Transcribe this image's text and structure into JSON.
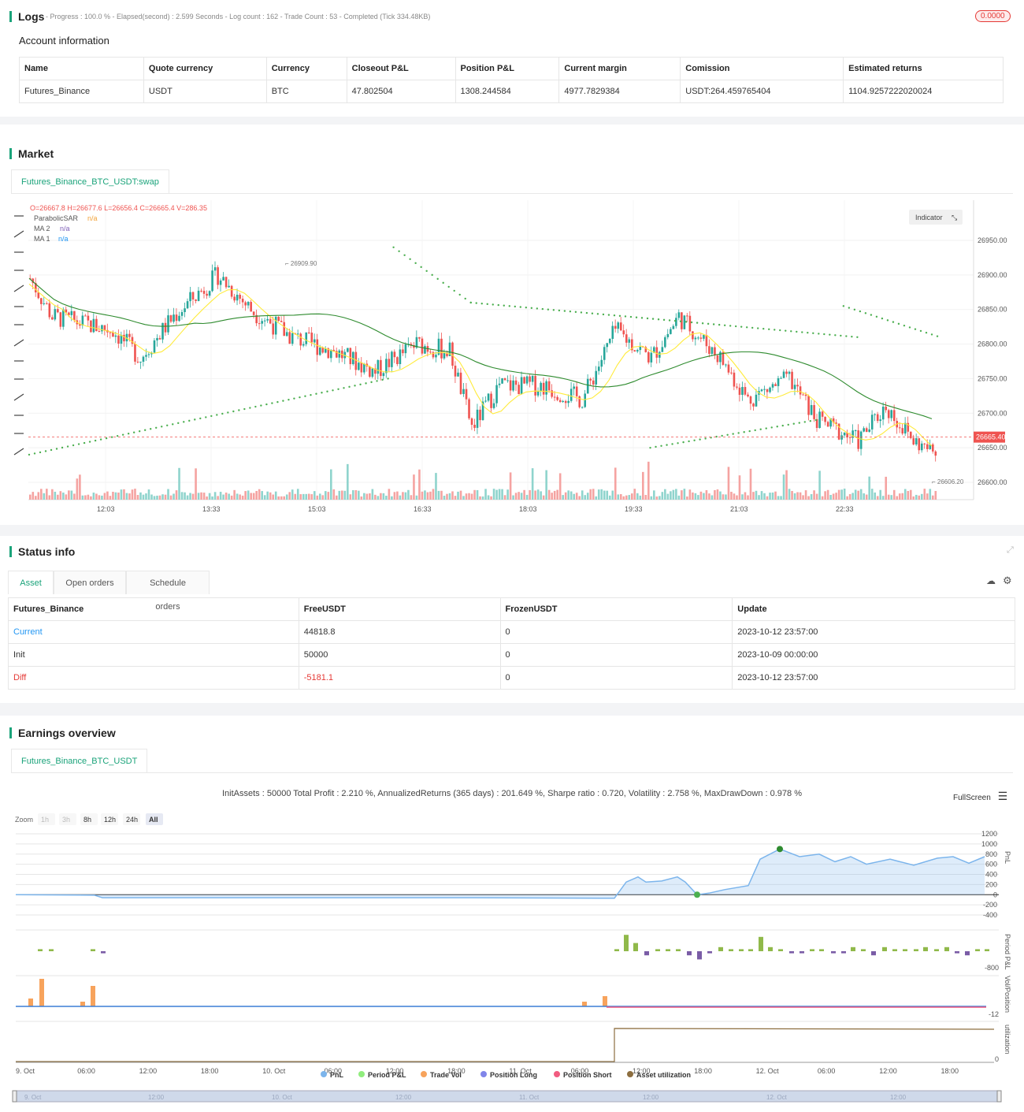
{
  "logs": {
    "title": "Logs",
    "summary": "- Progress : 100.0 % - Elapsed(second) : 2.599  Seconds - Log count : 162 - Trade Count : 53 - Completed (Tick 334.48KB)",
    "badge": "0.0000"
  },
  "account": {
    "title": "Account information",
    "headers": [
      "Name",
      "Quote currency",
      "Currency",
      "Closeout P&L",
      "Position P&L",
      "Current margin",
      "Comission",
      "Estimated returns"
    ],
    "row": [
      "Futures_Binance",
      "USDT",
      "BTC",
      "47.802504",
      "1308.244584",
      "4977.7829384",
      "USDT:264.459765404",
      "1104.9257222020024"
    ]
  },
  "market": {
    "title": "Market",
    "tab": "Futures_Binance_BTC_USDT:swap",
    "ohlc": "O=26667.8 H=26677.6 L=26656.4 C=26665.4 V=286.35",
    "legend": [
      {
        "name": "ParabolicSAR",
        "value": "n/a",
        "color": "#f2a33a"
      },
      {
        "name": "MA 2",
        "value": "n/a",
        "color": "#7f5fb8"
      },
      {
        "name": "MA 1",
        "value": "n/a",
        "color": "#2196f3"
      }
    ],
    "indicator_btn": "Indicator",
    "price_labels": [
      "26950.00",
      "26900.00",
      "26850.00",
      "26800.00",
      "26750.00",
      "26700.00",
      "26650.00",
      "26600.00"
    ],
    "current_price": "26665.40",
    "high_label": "26909.90",
    "low_label": "26606.20",
    "time_labels": [
      "12:03",
      "13:33",
      "15:03",
      "16:33",
      "18:03",
      "19:33",
      "21:03",
      "22:33"
    ],
    "colors": {
      "up": "#26a69a",
      "down": "#ef5350",
      "ma1": "#ffeb3b",
      "ma2": "#2e8b2e",
      "sar": "#4caf50"
    }
  },
  "status": {
    "title": "Status info",
    "tabs": [
      "Asset",
      "Open orders",
      "Schedule orders"
    ],
    "headers": [
      "Futures_Binance",
      "FreeUSDT",
      "FrozenUSDT",
      "Update"
    ],
    "rows": [
      [
        "Current",
        "44818.8",
        "0",
        "2023-10-12 23:57:00"
      ],
      [
        "Init",
        "50000",
        "0",
        "2023-10-09 00:00:00"
      ],
      [
        "Diff",
        "-5181.1",
        "0",
        "2023-10-12 23:57:00"
      ]
    ]
  },
  "earnings": {
    "title": "Earnings overview",
    "tab": "Futures_Binance_BTC_USDT",
    "summary": "InitAssets : 50000 Total Profit : 2.210 %, AnnualizedReturns (365 days) : 201.649 %, Sharpe ratio : 0.720, Volatility : 2.758 %, MaxDrawDown : 0.978 %",
    "fullscreen": "FullScreen",
    "zoom_label": "Zoom",
    "zoom_buttons": [
      "1h",
      "3h",
      "8h",
      "12h",
      "24h",
      "All"
    ],
    "pnl_axis": [
      "1200",
      "1000",
      "800",
      "600",
      "400",
      "200",
      "0",
      "-200",
      "-400"
    ],
    "axis_titles": [
      "PnL",
      "Period P&L",
      "Vol/Position",
      "utilization"
    ],
    "period_low": "-800",
    "vol_low": "-12",
    "util_low": "0",
    "x_labels": [
      "9. Oct",
      "06:00",
      "12:00",
      "18:00",
      "10. Oct",
      "06:00",
      "12:00",
      "18:00",
      "11. Oct",
      "06:00",
      "12:00",
      "18:00",
      "12. Oct",
      "06:00",
      "12:00",
      "18:00"
    ],
    "legend": [
      {
        "name": "PnL",
        "color": "#7cb5ec"
      },
      {
        "name": "Period P&L",
        "color": "#90ed7d"
      },
      {
        "name": "Trade Vol",
        "color": "#f7a35c"
      },
      {
        "name": "Position Long",
        "color": "#8085e9"
      },
      {
        "name": "Position Short",
        "color": "#f15c80"
      },
      {
        "name": "Asset utilization",
        "color": "#8d6e3f"
      }
    ],
    "navigator_labels": [
      "9. Oct",
      "12:00",
      "10. Oct",
      "12:00",
      "11. Oct",
      "12:00",
      "12. Oct",
      "12:00"
    ]
  }
}
